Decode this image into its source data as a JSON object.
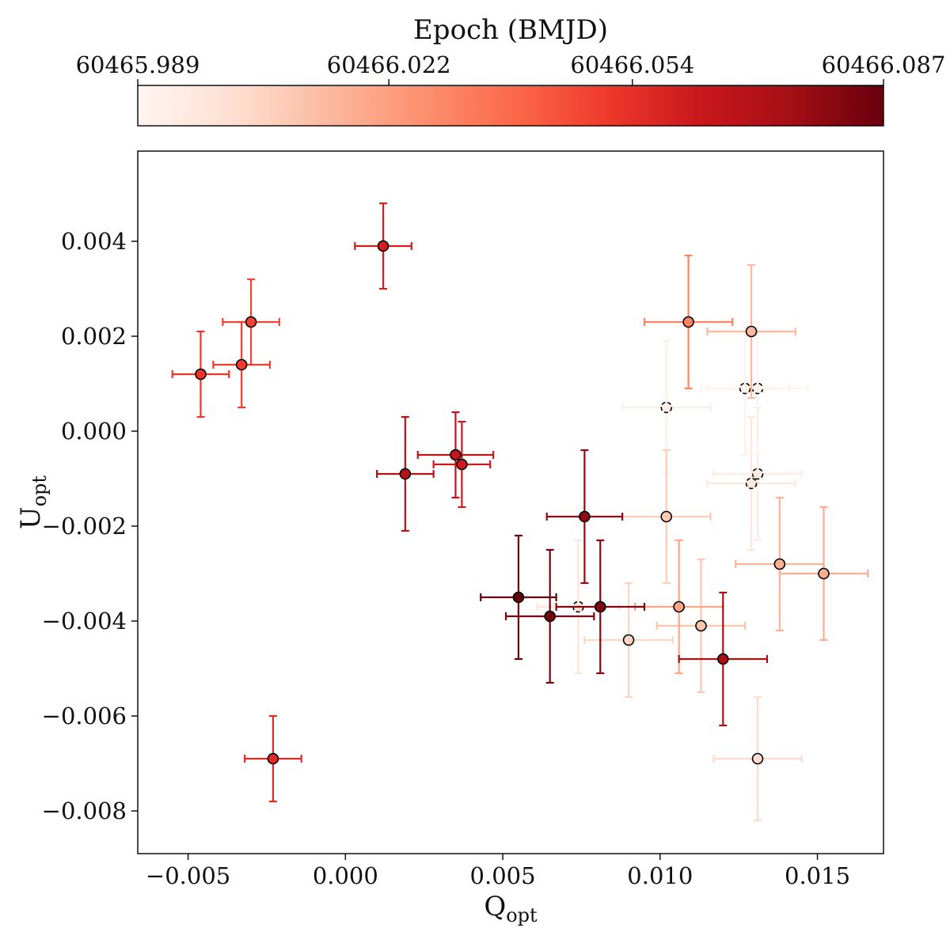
{
  "colorbar": {
    "label": "Epoch (BMJD)",
    "ticks": [
      "60465.989",
      "60466.022",
      "60466.054",
      "60466.087"
    ],
    "tick_values": [
      60465.989,
      60466.022,
      60466.054,
      60466.087
    ],
    "range": [
      60465.989,
      60466.087
    ],
    "colormap": "Reds",
    "stops": [
      {
        "t": 0.0,
        "color": "#fff5f0"
      },
      {
        "t": 0.125,
        "color": "#fee0d2"
      },
      {
        "t": 0.25,
        "color": "#fcbba1"
      },
      {
        "t": 0.375,
        "color": "#fc9272"
      },
      {
        "t": 0.5,
        "color": "#fb6a4a"
      },
      {
        "t": 0.625,
        "color": "#ef3b2c"
      },
      {
        "t": 0.75,
        "color": "#cb181d"
      },
      {
        "t": 0.875,
        "color": "#a50f15"
      },
      {
        "t": 1.0,
        "color": "#67000d"
      }
    ]
  },
  "chart_data": {
    "type": "scatter",
    "xlabel": "Q",
    "xlabel_sub": "opt",
    "ylabel": "U",
    "ylabel_sub": "opt",
    "xlim": [
      -0.0066,
      0.0171
    ],
    "ylim": [
      -0.0089,
      0.0059
    ],
    "xticks": [
      -0.005,
      0.0,
      0.005,
      0.01,
      0.015
    ],
    "xtick_labels": [
      "−0.005",
      "0.000",
      "0.005",
      "0.010",
      "0.015"
    ],
    "yticks": [
      0.004,
      0.002,
      0.0,
      -0.002,
      -0.004,
      -0.006,
      -0.008
    ],
    "ytick_labels": [
      "0.004",
      "0.002",
      "0.000",
      "−0.002",
      "−0.004",
      "−0.006",
      "−0.008"
    ],
    "grid": false,
    "points": [
      {
        "q": 0.0131,
        "u": 0.0009,
        "dq": 0.0016,
        "du": 0.0014,
        "epoch": 60465.989
      },
      {
        "q": 0.0127,
        "u": 0.0009,
        "dq": 0.0014,
        "du": 0.0014,
        "epoch": 60465.991
      },
      {
        "q": 0.0102,
        "u": 0.0005,
        "dq": 0.0014,
        "du": 0.0014,
        "epoch": 60465.993
      },
      {
        "q": 0.0131,
        "u": -0.0009,
        "dq": 0.0014,
        "du": 0.0014,
        "epoch": 60465.995
      },
      {
        "q": 0.0129,
        "u": -0.0011,
        "dq": 0.0014,
        "du": 0.0014,
        "epoch": 60465.997
      },
      {
        "q": 0.0074,
        "u": -0.0037,
        "dq": 0.0013,
        "du": 0.0014,
        "epoch": 60465.999
      },
      {
        "q": 0.0131,
        "u": -0.0069,
        "dq": 0.0014,
        "du": 0.0013,
        "epoch": 60466.003
      },
      {
        "q": 0.009,
        "u": -0.0044,
        "dq": 0.0014,
        "du": 0.0012,
        "epoch": 60466.005
      },
      {
        "q": 0.0102,
        "u": -0.0018,
        "dq": 0.0014,
        "du": 0.0014,
        "epoch": 60466.008
      },
      {
        "q": 0.0113,
        "u": -0.0041,
        "dq": 0.0014,
        "du": 0.0014,
        "epoch": 60466.01
      },
      {
        "q": 0.0129,
        "u": 0.0021,
        "dq": 0.0014,
        "du": 0.0014,
        "epoch": 60466.014
      },
      {
        "q": 0.0138,
        "u": -0.0028,
        "dq": 0.0014,
        "du": 0.0014,
        "epoch": 60466.016
      },
      {
        "q": 0.0152,
        "u": -0.003,
        "dq": 0.0014,
        "du": 0.0014,
        "epoch": 60466.018
      },
      {
        "q": 0.0106,
        "u": -0.0037,
        "dq": 0.0014,
        "du": 0.0014,
        "epoch": 60466.02
      },
      {
        "q": 0.0109,
        "u": 0.0023,
        "dq": 0.0014,
        "du": 0.0014,
        "epoch": 60466.03
      },
      {
        "q": -0.003,
        "u": 0.0023,
        "dq": 0.0009,
        "du": 0.0009,
        "epoch": 60466.048
      },
      {
        "q": -0.0033,
        "u": 0.0014,
        "dq": 0.0009,
        "du": 0.0009,
        "epoch": 60466.05
      },
      {
        "q": -0.0046,
        "u": 0.0012,
        "dq": 0.0009,
        "du": 0.0009,
        "epoch": 60466.052
      },
      {
        "q": -0.0023,
        "u": -0.0069,
        "dq": 0.0009,
        "du": 0.0009,
        "epoch": 60466.056
      },
      {
        "q": 0.0012,
        "u": 0.0039,
        "dq": 0.0009,
        "du": 0.0009,
        "epoch": 60466.06
      },
      {
        "q": 0.0037,
        "u": -0.0007,
        "dq": 0.0009,
        "du": 0.0009,
        "epoch": 60466.062
      },
      {
        "q": 0.0035,
        "u": -0.0005,
        "dq": 0.0012,
        "du": 0.0009,
        "epoch": 60466.066
      },
      {
        "q": 0.0019,
        "u": -0.0009,
        "dq": 0.0009,
        "du": 0.0012,
        "epoch": 60466.07
      },
      {
        "q": 0.012,
        "u": -0.0048,
        "dq": 0.0014,
        "du": 0.0014,
        "epoch": 60466.074
      },
      {
        "q": 0.0076,
        "u": -0.0018,
        "dq": 0.0012,
        "du": 0.0014,
        "epoch": 60466.079
      },
      {
        "q": 0.0081,
        "u": -0.0037,
        "dq": 0.0014,
        "du": 0.0014,
        "epoch": 60466.082
      },
      {
        "q": 0.0065,
        "u": -0.0039,
        "dq": 0.0014,
        "du": 0.0014,
        "epoch": 60466.084
      },
      {
        "q": 0.0055,
        "u": -0.0035,
        "dq": 0.0012,
        "du": 0.0013,
        "epoch": 60466.087
      }
    ]
  }
}
